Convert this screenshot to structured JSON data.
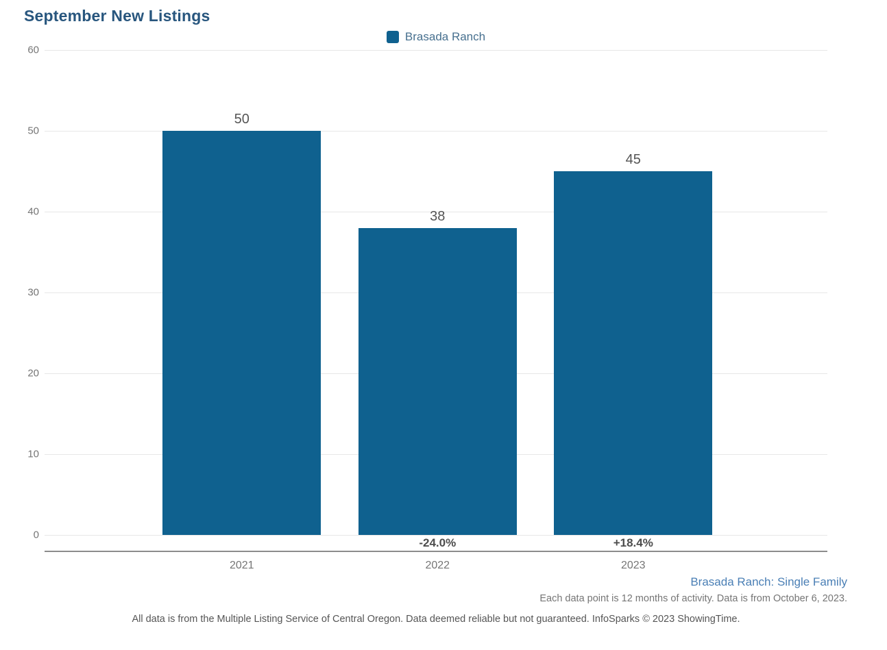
{
  "page": {
    "title": "September New Listings"
  },
  "legend": {
    "items": [
      {
        "label": "Brasada Ranch",
        "color": "#0f618f"
      }
    ]
  },
  "chart_data": {
    "type": "bar",
    "title": "September New Listings",
    "categories": [
      "2021",
      "2022",
      "2023"
    ],
    "series": [
      {
        "name": "Brasada Ranch",
        "values": [
          50,
          38,
          45
        ],
        "color": "#0f618f"
      }
    ],
    "data_labels": [
      "50",
      "38",
      "45"
    ],
    "change_labels": [
      "",
      "-24.0%",
      "+18.4%"
    ],
    "xlabel": "",
    "ylabel": "",
    "ylim": [
      0,
      60
    ],
    "yticks": [
      0,
      10,
      20,
      30,
      40,
      50,
      60
    ],
    "grid": true,
    "legend_position": "top-center"
  },
  "footer": {
    "series_note": "Brasada Ranch: Single Family",
    "data_note": "Each data point is 12 months of activity. Data is from October 6, 2023.",
    "disclaimer": "All data is from the Multiple Listing Service of Central Oregon. Data deemed reliable but not guaranteed. InfoSparks © 2023 ShowingTime."
  },
  "colors": {
    "bar": "#0f618f",
    "title_text": "#28567e",
    "legend_text": "#47708f",
    "series_note_text": "#4a7fb5",
    "gridline": "#e7e7e7",
    "axis_line": "#8c8c8c",
    "tick_text": "#757575",
    "value_label_text": "#555555",
    "change_label_text": "#4d4d4d"
  }
}
